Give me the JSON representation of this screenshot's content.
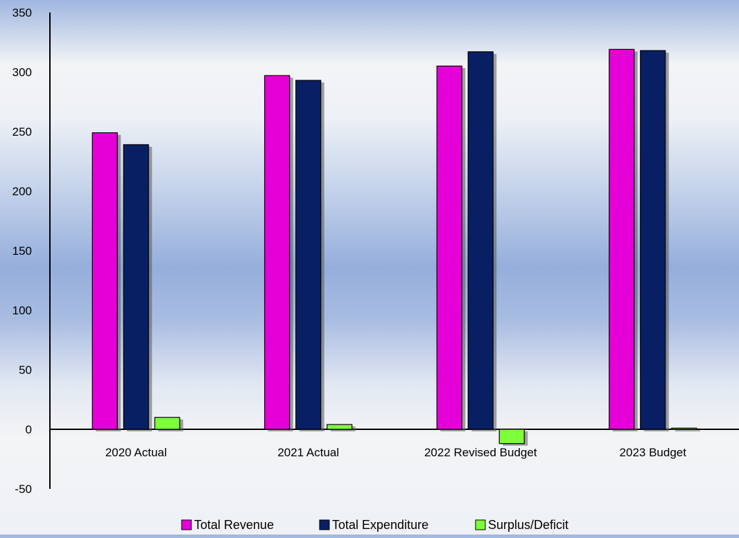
{
  "chart_data": {
    "type": "bar",
    "categories": [
      "2020 Actual",
      "2021 Actual",
      "2022 Revised Budget",
      "2023 Budget"
    ],
    "series": [
      {
        "name": "Total Revenue",
        "values": [
          249,
          297,
          305,
          319
        ],
        "color": "#e600d8"
      },
      {
        "name": "Total Expenditure",
        "values": [
          239,
          293,
          317,
          318
        ],
        "color": "#082063"
      },
      {
        "name": "Surplus/Deficit",
        "values": [
          10,
          4,
          -12,
          1
        ],
        "color": "#7dff3a"
      }
    ],
    "title": "",
    "xlabel": "",
    "ylabel": "",
    "ylim": [
      -50,
      350
    ],
    "yticks": [
      "350",
      "300",
      "250",
      "200",
      "150",
      "100",
      "50",
      "0",
      "-50"
    ],
    "grid": false,
    "legend_position": "bottom"
  }
}
